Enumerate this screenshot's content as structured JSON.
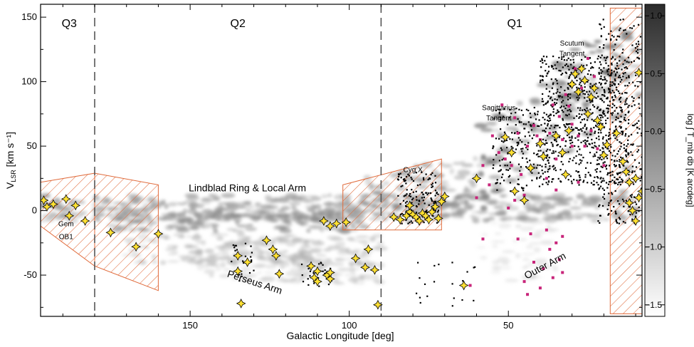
{
  "chart_data": {
    "type": "scatter",
    "xlabel": "Galactic Longitude [deg]",
    "ylabel_main": "V",
    "ylabel_sub": "LSR",
    "ylabel_unit": " [km s⁻¹]",
    "xlim": [
      197,
      8
    ],
    "ylim": [
      -82,
      160
    ],
    "xticks": [
      150,
      100,
      50
    ],
    "yticks": [
      -50,
      0,
      50,
      100,
      150
    ],
    "colorbar": {
      "label": "log ∫ T_mb db [K arcdeg]",
      "range": [
        -1.6,
        1.1
      ],
      "ticks": [
        "1.0",
        "0.5",
        "0.0",
        "−0.5",
        "−1.0",
        "−1.5"
      ],
      "tick_values": [
        1.0,
        0.5,
        0.0,
        -0.5,
        -1.0,
        -1.5
      ],
      "colors": [
        "#ffffff",
        "#2b2b2b"
      ]
    },
    "quadrant_dividers": [
      180,
      90
    ],
    "quadrants": [
      {
        "label": "Q3",
        "x": 188
      },
      {
        "label": "Q2",
        "x": 135
      },
      {
        "label": "Q1",
        "x": 48
      }
    ],
    "annotations": [
      {
        "text": "Lindblad Ring & Local Arm",
        "x": 132,
        "y": 15
      },
      {
        "text": "Gem",
        "x": 189,
        "y": -12
      },
      {
        "text": "OB1",
        "x": 189,
        "y": -22
      },
      {
        "text": "Cyg X",
        "x": 80,
        "y": 30
      },
      {
        "text": "Sagittarius",
        "x": 53,
        "y": 78
      },
      {
        "text": "Tangent",
        "x": 53,
        "y": 70
      },
      {
        "text": "Scutum",
        "x": 30,
        "y": 128
      },
      {
        "text": "Tangent",
        "x": 30,
        "y": 120
      },
      {
        "text": "Perseus Arm",
        "x": 130,
        "y": -58
      },
      {
        "text": "Outer Arm",
        "x": 38,
        "y": -45
      }
    ],
    "hatched_regions": [
      {
        "polygon": [
          [
            197,
            22
          ],
          [
            180,
            29
          ],
          [
            180,
            -43
          ],
          [
            197,
            -12
          ]
        ]
      },
      {
        "polygon": [
          [
            180,
            29
          ],
          [
            160,
            20
          ],
          [
            160,
            -62
          ],
          [
            180,
            -43
          ]
        ]
      },
      {
        "polygon": [
          [
            102,
            20
          ],
          [
            71,
            40
          ],
          [
            71,
            -15
          ],
          [
            102,
            -15
          ]
        ]
      },
      {
        "polygon": [
          [
            18,
            157
          ],
          [
            8,
            157
          ],
          [
            8,
            -80
          ],
          [
            18,
            -80
          ]
        ]
      }
    ],
    "series": [
      {
        "name": "",
        "marker": "star",
        "color": "#ffe033",
        "points": [
          [
            193,
            5
          ],
          [
            189,
            9
          ],
          [
            186,
            4
          ],
          [
            188,
            -4
          ],
          [
            196,
            8
          ],
          [
            195,
            3
          ],
          [
            183,
            -8
          ],
          [
            175,
            -17
          ],
          [
            167,
            -28
          ],
          [
            160,
            -18
          ],
          [
            126,
            -23
          ],
          [
            124,
            -30
          ],
          [
            123,
            -35
          ],
          [
            122,
            -49
          ],
          [
            134,
            -72
          ],
          [
            135,
            -35
          ],
          [
            135,
            -47
          ],
          [
            132,
            -40
          ],
          [
            112,
            -43
          ],
          [
            111,
            -52
          ],
          [
            110,
            -47
          ],
          [
            110,
            -55
          ],
          [
            107,
            -50
          ],
          [
            106,
            -53
          ],
          [
            106,
            -48
          ],
          [
            108,
            -8
          ],
          [
            106,
            -12
          ],
          [
            104,
            -10
          ],
          [
            101,
            -9
          ],
          [
            98,
            -37
          ],
          [
            95,
            -44
          ],
          [
            94,
            -30
          ],
          [
            92,
            -46
          ],
          [
            91,
            -73
          ],
          [
            86,
            -5
          ],
          [
            84,
            -7
          ],
          [
            82,
            -4
          ],
          [
            81,
            -1
          ],
          [
            81,
            4
          ],
          [
            80,
            -3
          ],
          [
            79,
            -5
          ],
          [
            78,
            -8
          ],
          [
            77,
            -2
          ],
          [
            76,
            -4
          ],
          [
            75,
            -7
          ],
          [
            74,
            -1
          ],
          [
            73,
            3
          ],
          [
            72,
            -6
          ],
          [
            71,
            7
          ],
          [
            70,
            11
          ],
          [
            64,
            -58
          ],
          [
            60,
            25
          ],
          [
            51,
            57
          ],
          [
            49,
            45
          ],
          [
            45,
            8
          ],
          [
            48,
            15
          ],
          [
            43,
            33
          ],
          [
            40,
            52
          ],
          [
            39,
            42
          ],
          [
            35,
            58
          ],
          [
            33,
            45
          ],
          [
            32,
            28
          ],
          [
            31,
            62
          ],
          [
            30,
            98
          ],
          [
            29,
            106
          ],
          [
            28,
            92
          ],
          [
            27,
            110
          ],
          [
            26,
            101
          ],
          [
            25,
            75
          ],
          [
            24,
            88
          ],
          [
            23,
            95
          ],
          [
            22,
            70
          ],
          [
            21,
            65
          ],
          [
            20,
            43
          ],
          [
            19,
            51
          ],
          [
            16,
            60
          ],
          [
            14,
            38
          ],
          [
            13,
            30
          ],
          [
            12,
            22
          ],
          [
            12,
            6
          ],
          [
            11,
            0
          ],
          [
            10,
            -8
          ],
          [
            9,
            107
          ],
          [
            9,
            10
          ],
          [
            8,
            15
          ],
          [
            10,
            25
          ]
        ]
      },
      {
        "name": "",
        "marker": "square",
        "color": "#c8257a",
        "points": [
          [
            52,
            82
          ],
          [
            55,
            58
          ],
          [
            53,
            45
          ],
          [
            51,
            40
          ],
          [
            49,
            35
          ],
          [
            47,
            60
          ],
          [
            46,
            28
          ],
          [
            44,
            50
          ],
          [
            42,
            66
          ],
          [
            41,
            58
          ],
          [
            40,
            55
          ],
          [
            38,
            25
          ],
          [
            37,
            60
          ],
          [
            36,
            82
          ],
          [
            35,
            40
          ],
          [
            34,
            73
          ],
          [
            33,
            55
          ],
          [
            32,
            90
          ],
          [
            31,
            81
          ],
          [
            30,
            67
          ],
          [
            29,
            110
          ],
          [
            28,
            58
          ],
          [
            27,
            95
          ],
          [
            26,
            50
          ],
          [
            25,
            118
          ],
          [
            24,
            62
          ],
          [
            23,
            104
          ],
          [
            22,
            48
          ],
          [
            20,
            35
          ],
          [
            56,
            20
          ],
          [
            48,
            8
          ],
          [
            45,
            12
          ],
          [
            50,
            2
          ],
          [
            35,
            16
          ],
          [
            28,
            22
          ],
          [
            60,
            10
          ],
          [
            58,
            35
          ],
          [
            45,
            -55
          ],
          [
            42,
            -40
          ],
          [
            40,
            -60
          ],
          [
            39,
            -45
          ],
          [
            37,
            -30
          ],
          [
            36,
            -52
          ],
          [
            35,
            -25
          ],
          [
            34,
            -38
          ],
          [
            33,
            -20
          ],
          [
            33,
            -48
          ],
          [
            38,
            -15
          ],
          [
            43,
            -18
          ],
          [
            47,
            -22
          ],
          [
            44,
            -65
          ],
          [
            58,
            -22
          ],
          [
            62,
            -58
          ],
          [
            48,
            72
          ],
          [
            30,
            50
          ]
        ]
      }
    ]
  }
}
